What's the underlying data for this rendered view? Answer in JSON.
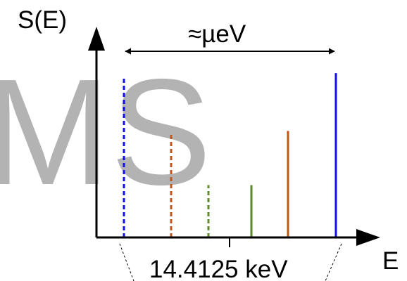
{
  "watermark": "MS",
  "y_axis_label": "S(E)",
  "x_axis_label": "E",
  "width_annotation": "≈µeV",
  "center_energy_label": "14.4125 keV",
  "colors": {
    "blue": "#1010ee",
    "orange": "#c0561a",
    "green": "#5e8a2e",
    "axis": "#000000",
    "watermark": "#b3b3b3"
  },
  "lines": [
    {
      "name": "line-blue-dashed",
      "style": "dashed",
      "color": "blue",
      "relative_height": 0.88
    },
    {
      "name": "line-orange-dashed",
      "style": "dashed",
      "color": "orange",
      "relative_height": 0.58
    },
    {
      "name": "line-green-dashed",
      "style": "dashed",
      "color": "green",
      "relative_height": 0.29
    },
    {
      "name": "line-green-solid",
      "style": "solid",
      "color": "green",
      "relative_height": 0.29
    },
    {
      "name": "line-orange-solid",
      "style": "solid",
      "color": "orange",
      "relative_height": 0.59
    },
    {
      "name": "line-blue-solid",
      "style": "solid",
      "color": "blue",
      "relative_height": 0.91
    }
  ]
}
